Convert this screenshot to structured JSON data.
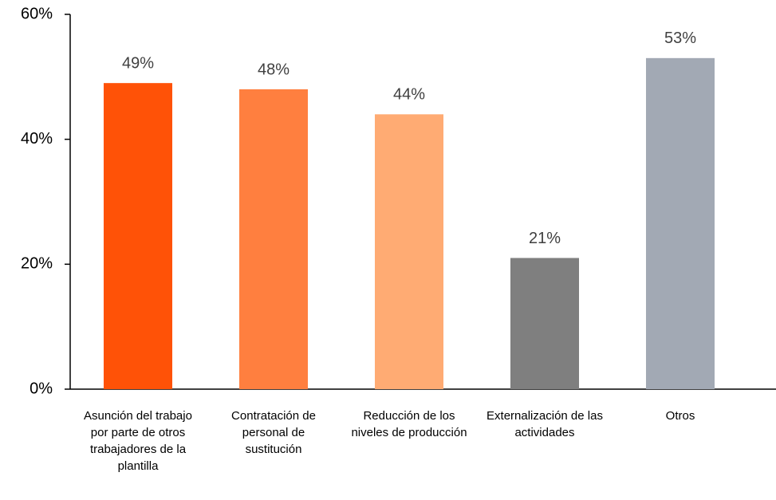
{
  "chart_data": {
    "type": "bar",
    "categories": [
      "Asunción del trabajo por parte de otros trabajadores de la plantilla",
      "Contratación de personal de sustitución",
      "Reducción de los niveles de producción",
      "Externalización de las actividades",
      "Otros"
    ],
    "values": [
      49,
      48,
      44,
      21,
      53
    ],
    "value_labels": [
      "49%",
      "48%",
      "44%",
      "21%",
      "53%"
    ],
    "colors": [
      "#ff5207",
      "#ff7f3f",
      "#ffab73",
      "#7f7f7f",
      "#a2a9b4"
    ],
    "ylim": [
      0,
      60
    ],
    "yticks": [
      {
        "value": 0,
        "label": "0%"
      },
      {
        "value": 20,
        "label": "20%"
      },
      {
        "value": 40,
        "label": "40%"
      },
      {
        "value": 60,
        "label": "60%"
      }
    ],
    "grid": false
  }
}
